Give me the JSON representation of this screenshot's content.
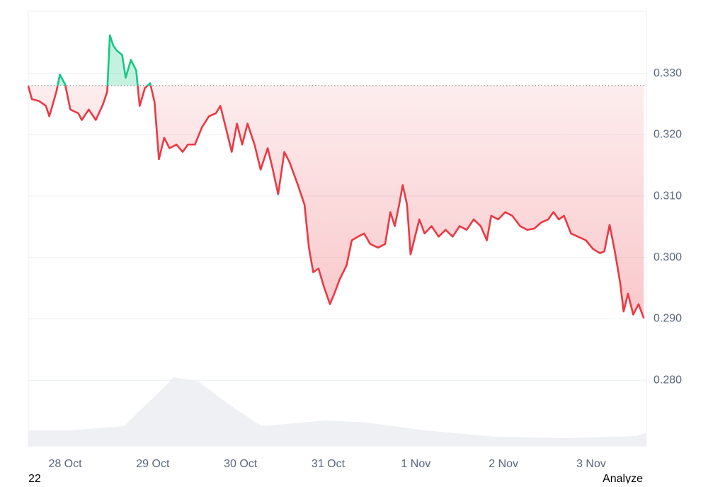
{
  "chart_data": {
    "type": "line",
    "x": [
      -0.42,
      -0.38,
      -0.3,
      -0.22,
      -0.18,
      -0.1,
      -0.06,
      0.0,
      0.06,
      0.15,
      0.19,
      0.27,
      0.35,
      0.43,
      0.48,
      0.51,
      0.55,
      0.59,
      0.65,
      0.69,
      0.75,
      0.81,
      0.85,
      0.91,
      0.97,
      1.02,
      1.07,
      1.13,
      1.19,
      1.27,
      1.34,
      1.4,
      1.48,
      1.56,
      1.64,
      1.72,
      1.77,
      1.84,
      1.9,
      1.96,
      2.02,
      2.08,
      2.16,
      2.23,
      2.31,
      2.36,
      2.43,
      2.5,
      2.56,
      2.65,
      2.73,
      2.78,
      2.83,
      2.89,
      2.95,
      3.02,
      3.07,
      3.13,
      3.21,
      3.27,
      3.34,
      3.41,
      3.48,
      3.57,
      3.65,
      3.71,
      3.76,
      3.81,
      3.85,
      3.9,
      3.94,
      3.98,
      4.04,
      4.1,
      4.18,
      4.26,
      4.34,
      4.42,
      4.5,
      4.58,
      4.66,
      4.74,
      4.81,
      4.86,
      4.94,
      5.02,
      5.1,
      5.19,
      5.27,
      5.35,
      5.43,
      5.51,
      5.57,
      5.63,
      5.69,
      5.77,
      5.85,
      5.94,
      6.02,
      6.1,
      6.15,
      6.21,
      6.27,
      6.33,
      6.37,
      6.42,
      6.48,
      6.54,
      6.6
    ],
    "values": [
      0.3279,
      0.3258,
      0.3255,
      0.3247,
      0.323,
      0.327,
      0.3298,
      0.3282,
      0.3241,
      0.3235,
      0.3224,
      0.3241,
      0.3224,
      0.3249,
      0.327,
      0.3362,
      0.3345,
      0.3337,
      0.333,
      0.3293,
      0.3322,
      0.3305,
      0.3247,
      0.3276,
      0.3284,
      0.3253,
      0.316,
      0.3195,
      0.3178,
      0.3184,
      0.3172,
      0.3184,
      0.3184,
      0.3212,
      0.323,
      0.3235,
      0.3247,
      0.3207,
      0.3172,
      0.3218,
      0.3184,
      0.3218,
      0.3184,
      0.3143,
      0.3178,
      0.3149,
      0.3103,
      0.3172,
      0.3155,
      0.312,
      0.3086,
      0.3016,
      0.2976,
      0.2982,
      0.2953,
      0.2924,
      0.2941,
      0.2964,
      0.2987,
      0.3028,
      0.3034,
      0.3039,
      0.3022,
      0.3016,
      0.3022,
      0.3074,
      0.3051,
      0.3086,
      0.3118,
      0.3086,
      0.3005,
      0.3028,
      0.3062,
      0.3039,
      0.3051,
      0.3034,
      0.3045,
      0.3034,
      0.3051,
      0.3045,
      0.3062,
      0.3051,
      0.3028,
      0.3068,
      0.3062,
      0.3074,
      0.3068,
      0.3051,
      0.3045,
      0.3047,
      0.3057,
      0.3062,
      0.3074,
      0.3062,
      0.3068,
      0.3039,
      0.3034,
      0.3028,
      0.3014,
      0.3007,
      0.301,
      0.3053,
      0.301,
      0.2959,
      0.2912,
      0.2941,
      0.2907,
      0.2924,
      0.2901
    ],
    "baseline": 0.328,
    "up_color": "#16c784",
    "down_color": "#ea3943",
    "xlim": [
      -0.42,
      6.63
    ],
    "xticks": [
      {
        "value": 0,
        "label": "28 Oct"
      },
      {
        "value": 1,
        "label": "29 Oct"
      },
      {
        "value": 2,
        "label": "30 Oct"
      },
      {
        "value": 3,
        "label": "31 Oct"
      },
      {
        "value": 4,
        "label": "1 Nov"
      },
      {
        "value": 5,
        "label": "2 Nov"
      },
      {
        "value": 6,
        "label": "3 Nov"
      }
    ],
    "ylim": [
      0.2693,
      0.3401
    ],
    "yticks": [
      {
        "value": 0.28,
        "label": "0.280"
      },
      {
        "value": 0.29,
        "label": "0.290"
      },
      {
        "value": 0.3,
        "label": "0.300"
      },
      {
        "value": 0.31,
        "label": "0.310"
      },
      {
        "value": 0.32,
        "label": "0.320"
      },
      {
        "value": 0.33,
        "label": "0.330"
      }
    ],
    "grid": true,
    "volume": {
      "x": [
        -0.42,
        0.06,
        0.67,
        1.02,
        1.24,
        1.52,
        1.84,
        2.24,
        2.97,
        3.45,
        4.1,
        4.9,
        5.71,
        6.52,
        6.63
      ],
      "values": [
        22,
        22,
        28,
        70,
        97,
        91,
        61,
        28,
        36,
        33,
        22,
        13,
        11,
        14,
        19
      ],
      "vlim": [
        0,
        100
      ],
      "color": "#eef0f3"
    },
    "footer_left": "22",
    "footer_right": "Analyze"
  }
}
